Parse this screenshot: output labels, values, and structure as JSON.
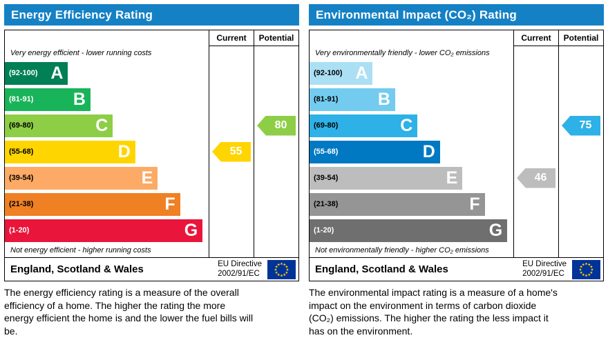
{
  "panels": [
    {
      "title": "Energy Efficiency Rating",
      "header_bg": "#1581c5",
      "columns": {
        "current": "Current",
        "potential": "Potential"
      },
      "top_caption": "Very energy efficient - lower running costs",
      "bottom_caption": "Not energy efficient - higher running costs",
      "bands": [
        {
          "letter": "A",
          "range": "(92-100)",
          "color": "#008054",
          "range_color": "#ffffff",
          "width_pct": 31
        },
        {
          "letter": "B",
          "range": "(81-91)",
          "color": "#19b459",
          "range_color": "#ffffff",
          "width_pct": 42
        },
        {
          "letter": "C",
          "range": "(69-80)",
          "color": "#8dce46",
          "range_color": "#000000",
          "width_pct": 53
        },
        {
          "letter": "D",
          "range": "(55-68)",
          "color": "#ffd500",
          "range_color": "#000000",
          "width_pct": 64
        },
        {
          "letter": "E",
          "range": "(39-54)",
          "color": "#fcaa65",
          "range_color": "#000000",
          "width_pct": 75
        },
        {
          "letter": "F",
          "range": "(21-38)",
          "color": "#ef8023",
          "range_color": "#000000",
          "width_pct": 86
        },
        {
          "letter": "G",
          "range": "(1-20)",
          "color": "#e9153b",
          "range_color": "#ffffff",
          "width_pct": 97
        }
      ],
      "current": {
        "value": "55",
        "band_index": 3,
        "color": "#ffd500"
      },
      "potential": {
        "value": "80",
        "band_index": 2,
        "color": "#8dce46"
      },
      "footer": {
        "region": "England, Scotland & Wales",
        "directive_line1": "EU Directive",
        "directive_line2": "2002/91/EC"
      },
      "description": "The energy efficiency rating is a measure of the overall efficiency of a home. The higher the rating the more energy efficient the home is and the lower the fuel bills will be."
    },
    {
      "title": "Environmental Impact (CO₂) Rating",
      "header_bg": "#1581c5",
      "columns": {
        "current": "Current",
        "potential": "Potential"
      },
      "top_caption": "Very environmentally friendly - lower CO₂ emissions",
      "bottom_caption": "Not environmentally friendly - higher CO₂ emissions",
      "bands": [
        {
          "letter": "A",
          "range": "(92-100)",
          "color": "#abdff4",
          "range_color": "#000000",
          "width_pct": 31
        },
        {
          "letter": "B",
          "range": "(81-91)",
          "color": "#73cbf0",
          "range_color": "#000000",
          "width_pct": 42
        },
        {
          "letter": "C",
          "range": "(69-80)",
          "color": "#2eb1e6",
          "range_color": "#000000",
          "width_pct": 53
        },
        {
          "letter": "D",
          "range": "(55-68)",
          "color": "#0079c2",
          "range_color": "#ffffff",
          "width_pct": 64
        },
        {
          "letter": "E",
          "range": "(39-54)",
          "color": "#bdbdbd",
          "range_color": "#000000",
          "width_pct": 75
        },
        {
          "letter": "F",
          "range": "(21-38)",
          "color": "#959595",
          "range_color": "#000000",
          "width_pct": 86
        },
        {
          "letter": "G",
          "range": "(1-20)",
          "color": "#6f6f6f",
          "range_color": "#ffffff",
          "width_pct": 97
        }
      ],
      "current": {
        "value": "46",
        "band_index": 4,
        "color": "#bdbdbd"
      },
      "potential": {
        "value": "75",
        "band_index": 2,
        "color": "#2eb1e6"
      },
      "footer": {
        "region": "England, Scotland & Wales",
        "directive_line1": "EU Directive",
        "directive_line2": "2002/91/EC"
      },
      "description": "The environmental impact rating is a measure of a home's impact on the environment in terms of carbon dioxide (CO₂) emissions. The higher the rating the less impact it has on the environment."
    }
  ],
  "chart_data": [
    {
      "type": "bar",
      "title": "Energy Efficiency Rating",
      "categories": [
        "A (92-100)",
        "B (81-91)",
        "C (69-80)",
        "D (55-68)",
        "E (39-54)",
        "F (21-38)",
        "G (1-20)"
      ],
      "band_width_pct": [
        31,
        42,
        53,
        64,
        75,
        86,
        97
      ],
      "current": {
        "value": 55,
        "band": "D"
      },
      "potential": {
        "value": 80,
        "band": "C"
      },
      "xlabel": "",
      "ylabel": "",
      "legend": [
        "Current",
        "Potential"
      ]
    },
    {
      "type": "bar",
      "title": "Environmental Impact (CO₂) Rating",
      "categories": [
        "A (92-100)",
        "B (81-91)",
        "C (69-80)",
        "D (55-68)",
        "E (39-54)",
        "F (21-38)",
        "G (1-20)"
      ],
      "band_width_pct": [
        31,
        42,
        53,
        64,
        75,
        86,
        97
      ],
      "current": {
        "value": 46,
        "band": "E"
      },
      "potential": {
        "value": 75,
        "band": "C"
      },
      "xlabel": "",
      "ylabel": "",
      "legend": [
        "Current",
        "Potential"
      ]
    }
  ]
}
